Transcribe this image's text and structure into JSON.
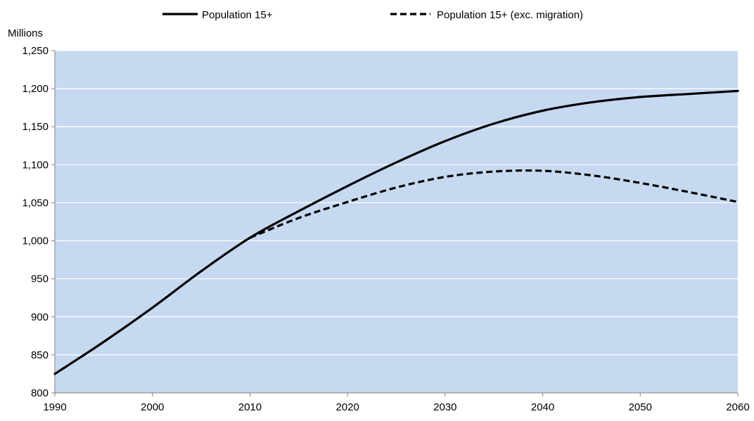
{
  "chart_data": {
    "type": "line",
    "title": "",
    "xlabel": "",
    "ylabel": "Millions",
    "xlim": [
      1990,
      2060
    ],
    "ylim": [
      800,
      1250
    ],
    "x_ticks": [
      1990,
      2000,
      2010,
      2020,
      2030,
      2040,
      2050,
      2060
    ],
    "x_tick_labels": [
      "1990",
      "2000",
      "2010",
      "2020",
      "2030",
      "2040",
      "2050",
      "2060"
    ],
    "y_ticks": [
      800,
      850,
      900,
      950,
      1000,
      1050,
      1100,
      1150,
      1200,
      1250
    ],
    "y_tick_labels": [
      "800",
      "850",
      "900",
      "950",
      "1,000",
      "1,050",
      "1,100",
      "1,150",
      "1,200",
      "1,250"
    ],
    "grid": "horizontal",
    "legend_position": "top",
    "colors": {
      "plot_background": "#c6d9f1",
      "gridline": "#ffffff",
      "series_line": "#000000",
      "axis": "#808080"
    },
    "series": [
      {
        "name": "Population 15+",
        "style": "solid",
        "x": [
          1990,
          1995,
          2000,
          2005,
          2010,
          2015,
          2020,
          2025,
          2030,
          2035,
          2040,
          2045,
          2050,
          2055,
          2060
        ],
        "y": [
          825,
          867,
          912,
          960,
          1004,
          1039,
          1072,
          1103,
          1131,
          1154,
          1171,
          1182,
          1189,
          1193,
          1197
        ]
      },
      {
        "name": "Population 15+ (exc. migration)",
        "style": "dashed",
        "x": [
          2010,
          2015,
          2020,
          2025,
          2030,
          2035,
          2040,
          2045,
          2050,
          2055,
          2060
        ],
        "y": [
          1004,
          1030,
          1051,
          1070,
          1084,
          1091,
          1092,
          1086,
          1076,
          1064,
          1051
        ]
      }
    ]
  }
}
